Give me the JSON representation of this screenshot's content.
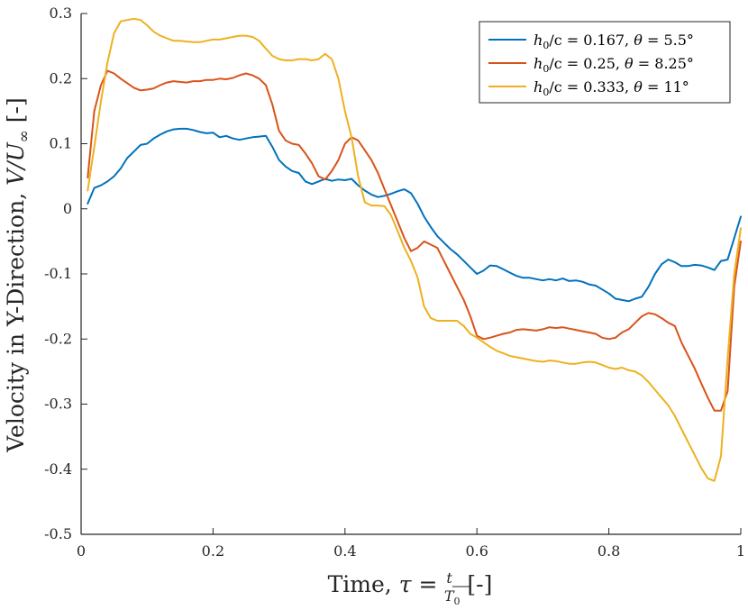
{
  "chart_data": {
    "type": "line",
    "xlabel": "Time, τ = t / T0 [-]",
    "xlabel_parts": {
      "prefix": "Time, ",
      "var": "τ",
      "eq": " = ",
      "num": "t",
      "den_base": "T",
      "den_sub": "0",
      "suffix": " [-]"
    },
    "ylabel": "Velocity in Y-Direction, V/U∞ [-]",
    "ylabel_parts": {
      "prefix": "Velocity in Y-Direction, ",
      "var": "V/U",
      "sub": "∞",
      "suffix": "  [-]"
    },
    "xlim": [
      0,
      1
    ],
    "ylim": [
      -0.5,
      0.3
    ],
    "xticks": [
      0,
      0.2,
      0.4,
      0.6,
      0.8,
      1
    ],
    "xtick_labels": [
      "0",
      "0.2",
      "0.4",
      "0.6",
      "0.8",
      "1"
    ],
    "yticks": [
      -0.5,
      -0.4,
      -0.3,
      -0.2,
      -0.1,
      0,
      0.1,
      0.2,
      0.3
    ],
    "ytick_labels": [
      "-0.5",
      "-0.4",
      "-0.3",
      "-0.2",
      "-0.1",
      "0",
      "0.1",
      "0.2",
      "0.3"
    ],
    "grid": false,
    "legend_position": "top-right",
    "series": [
      {
        "name": "h0/c = 0.167, θ = 5.5°",
        "legend": {
          "h": "h",
          "sub": "0",
          "rest": "/c = 0.167, ",
          "theta": "θ",
          "tail": " = 5.5°"
        },
        "color": "#0072BD",
        "x": [
          0.01,
          0.02,
          0.03,
          0.04,
          0.05,
          0.06,
          0.07,
          0.08,
          0.09,
          0.1,
          0.11,
          0.12,
          0.13,
          0.14,
          0.15,
          0.16,
          0.17,
          0.18,
          0.19,
          0.2,
          0.21,
          0.22,
          0.23,
          0.24,
          0.25,
          0.26,
          0.27,
          0.28,
          0.29,
          0.3,
          0.31,
          0.32,
          0.33,
          0.34,
          0.35,
          0.36,
          0.37,
          0.38,
          0.39,
          0.4,
          0.41,
          0.42,
          0.43,
          0.44,
          0.45,
          0.46,
          0.47,
          0.48,
          0.49,
          0.5,
          0.51,
          0.52,
          0.53,
          0.54,
          0.55,
          0.56,
          0.57,
          0.58,
          0.59,
          0.6,
          0.61,
          0.62,
          0.63,
          0.64,
          0.65,
          0.66,
          0.67,
          0.68,
          0.69,
          0.7,
          0.71,
          0.72,
          0.73,
          0.74,
          0.75,
          0.76,
          0.77,
          0.78,
          0.79,
          0.8,
          0.81,
          0.82,
          0.83,
          0.84,
          0.85,
          0.86,
          0.87,
          0.88,
          0.89,
          0.9,
          0.91,
          0.92,
          0.93,
          0.94,
          0.95,
          0.96,
          0.97,
          0.98,
          0.99,
          1.0
        ],
        "y": [
          0.008,
          0.032,
          0.036,
          0.042,
          0.05,
          0.062,
          0.078,
          0.088,
          0.098,
          0.1,
          0.108,
          0.114,
          0.119,
          0.122,
          0.123,
          0.123,
          0.121,
          0.118,
          0.116,
          0.117,
          0.11,
          0.112,
          0.108,
          0.106,
          0.108,
          0.11,
          0.111,
          0.112,
          0.095,
          0.075,
          0.065,
          0.058,
          0.055,
          0.042,
          0.038,
          0.042,
          0.046,
          0.043,
          0.045,
          0.044,
          0.046,
          0.036,
          0.028,
          0.022,
          0.018,
          0.02,
          0.023,
          0.027,
          0.03,
          0.024,
          0.008,
          -0.012,
          -0.028,
          -0.042,
          -0.052,
          -0.062,
          -0.07,
          -0.08,
          -0.09,
          -0.1,
          -0.095,
          -0.087,
          -0.088,
          -0.093,
          -0.098,
          -0.103,
          -0.106,
          -0.106,
          -0.108,
          -0.11,
          -0.108,
          -0.11,
          -0.107,
          -0.111,
          -0.11,
          -0.112,
          -0.116,
          -0.118,
          -0.124,
          -0.13,
          -0.138,
          -0.14,
          -0.142,
          -0.138,
          -0.135,
          -0.12,
          -0.1,
          -0.085,
          -0.078,
          -0.082,
          -0.088,
          -0.088,
          -0.086,
          -0.087,
          -0.09,
          -0.094,
          -0.08,
          -0.078,
          -0.045,
          -0.012
        ]
      },
      {
        "name": "h0/c = 0.25, θ = 8.25°",
        "legend": {
          "h": "h",
          "sub": "0",
          "rest": "/c = 0.25, ",
          "theta": "θ",
          "tail": " = 8.25°"
        },
        "color": "#D95319",
        "x": [
          0.01,
          0.02,
          0.03,
          0.04,
          0.05,
          0.06,
          0.07,
          0.08,
          0.09,
          0.1,
          0.11,
          0.12,
          0.13,
          0.14,
          0.15,
          0.16,
          0.17,
          0.18,
          0.19,
          0.2,
          0.21,
          0.22,
          0.23,
          0.24,
          0.25,
          0.26,
          0.27,
          0.28,
          0.29,
          0.3,
          0.31,
          0.32,
          0.33,
          0.34,
          0.35,
          0.36,
          0.37,
          0.38,
          0.39,
          0.4,
          0.41,
          0.42,
          0.43,
          0.44,
          0.45,
          0.46,
          0.47,
          0.48,
          0.49,
          0.5,
          0.51,
          0.52,
          0.53,
          0.54,
          0.55,
          0.56,
          0.57,
          0.58,
          0.59,
          0.6,
          0.61,
          0.62,
          0.63,
          0.64,
          0.65,
          0.66,
          0.67,
          0.68,
          0.69,
          0.7,
          0.71,
          0.72,
          0.73,
          0.74,
          0.75,
          0.76,
          0.77,
          0.78,
          0.79,
          0.8,
          0.81,
          0.82,
          0.83,
          0.84,
          0.85,
          0.86,
          0.87,
          0.88,
          0.89,
          0.9,
          0.91,
          0.92,
          0.93,
          0.94,
          0.95,
          0.96,
          0.97,
          0.98,
          0.99,
          1.0
        ],
        "y": [
          0.048,
          0.15,
          0.19,
          0.212,
          0.208,
          0.2,
          0.193,
          0.186,
          0.182,
          0.183,
          0.185,
          0.19,
          0.194,
          0.196,
          0.195,
          0.194,
          0.196,
          0.196,
          0.198,
          0.198,
          0.2,
          0.199,
          0.201,
          0.205,
          0.208,
          0.205,
          0.2,
          0.19,
          0.16,
          0.12,
          0.105,
          0.1,
          0.098,
          0.085,
          0.07,
          0.05,
          0.045,
          0.058,
          0.075,
          0.1,
          0.11,
          0.105,
          0.09,
          0.075,
          0.055,
          0.03,
          0.005,
          -0.02,
          -0.045,
          -0.065,
          -0.06,
          -0.05,
          -0.055,
          -0.06,
          -0.08,
          -0.1,
          -0.12,
          -0.14,
          -0.165,
          -0.195,
          -0.2,
          -0.198,
          -0.195,
          -0.192,
          -0.19,
          -0.186,
          -0.185,
          -0.186,
          -0.187,
          -0.185,
          -0.182,
          -0.183,
          -0.182,
          -0.184,
          -0.186,
          -0.188,
          -0.19,
          -0.192,
          -0.198,
          -0.2,
          -0.198,
          -0.19,
          -0.185,
          -0.175,
          -0.165,
          -0.16,
          -0.162,
          -0.168,
          -0.175,
          -0.18,
          -0.205,
          -0.225,
          -0.245,
          -0.268,
          -0.29,
          -0.31,
          -0.31,
          -0.28,
          -0.12,
          -0.05
        ]
      },
      {
        "name": "h0/c = 0.333, θ = 11°",
        "legend": {
          "h": "h",
          "sub": "0",
          "rest": "/c = 0.333, ",
          "theta": "θ",
          "tail": " = 11°"
        },
        "color": "#EDB120",
        "x": [
          0.01,
          0.02,
          0.03,
          0.04,
          0.05,
          0.06,
          0.07,
          0.08,
          0.09,
          0.1,
          0.11,
          0.12,
          0.13,
          0.14,
          0.15,
          0.16,
          0.17,
          0.18,
          0.19,
          0.2,
          0.21,
          0.22,
          0.23,
          0.24,
          0.25,
          0.26,
          0.27,
          0.28,
          0.29,
          0.3,
          0.31,
          0.32,
          0.33,
          0.34,
          0.35,
          0.36,
          0.37,
          0.38,
          0.39,
          0.4,
          0.41,
          0.42,
          0.43,
          0.44,
          0.45,
          0.46,
          0.47,
          0.48,
          0.49,
          0.5,
          0.51,
          0.52,
          0.53,
          0.54,
          0.55,
          0.56,
          0.57,
          0.58,
          0.59,
          0.6,
          0.61,
          0.62,
          0.63,
          0.64,
          0.65,
          0.66,
          0.67,
          0.68,
          0.69,
          0.7,
          0.71,
          0.72,
          0.73,
          0.74,
          0.75,
          0.76,
          0.77,
          0.78,
          0.79,
          0.8,
          0.81,
          0.82,
          0.83,
          0.84,
          0.85,
          0.86,
          0.87,
          0.88,
          0.89,
          0.9,
          0.91,
          0.92,
          0.93,
          0.94,
          0.95,
          0.96,
          0.97,
          0.98,
          0.99,
          1.0
        ],
        "y": [
          0.028,
          0.095,
          0.165,
          0.225,
          0.27,
          0.288,
          0.29,
          0.292,
          0.29,
          0.282,
          0.272,
          0.266,
          0.262,
          0.258,
          0.258,
          0.257,
          0.256,
          0.256,
          0.258,
          0.26,
          0.26,
          0.262,
          0.264,
          0.266,
          0.266,
          0.264,
          0.258,
          0.246,
          0.235,
          0.23,
          0.228,
          0.228,
          0.23,
          0.23,
          0.228,
          0.23,
          0.238,
          0.23,
          0.2,
          0.15,
          0.11,
          0.05,
          0.01,
          0.005,
          0.005,
          0.004,
          -0.01,
          -0.035,
          -0.06,
          -0.08,
          -0.105,
          -0.15,
          -0.168,
          -0.172,
          -0.172,
          -0.172,
          -0.172,
          -0.18,
          -0.192,
          -0.198,
          -0.205,
          -0.212,
          -0.218,
          -0.222,
          -0.226,
          -0.228,
          -0.23,
          -0.232,
          -0.234,
          -0.235,
          -0.233,
          -0.234,
          -0.236,
          -0.238,
          -0.238,
          -0.236,
          -0.235,
          -0.236,
          -0.24,
          -0.244,
          -0.246,
          -0.244,
          -0.248,
          -0.25,
          -0.256,
          -0.266,
          -0.278,
          -0.29,
          -0.302,
          -0.318,
          -0.338,
          -0.358,
          -0.378,
          -0.398,
          -0.414,
          -0.418,
          -0.38,
          -0.23,
          -0.1,
          -0.03
        ]
      }
    ]
  }
}
